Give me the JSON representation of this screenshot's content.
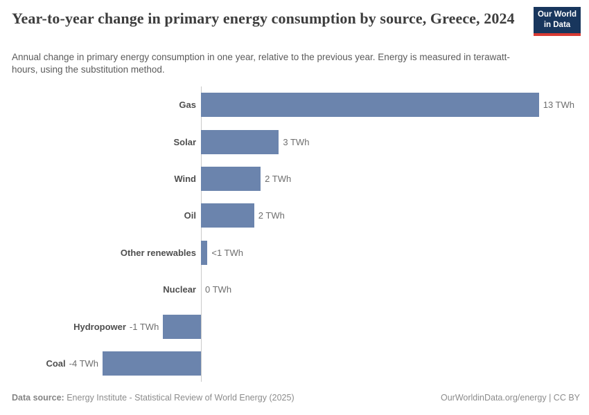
{
  "header": {
    "title": "Year-to-year change in primary energy consumption by source, Greece, 2024",
    "subtitle": "Annual change in primary energy consumption in one year, relative to the previous year. Energy is measured in terawatt-hours, using the substitution method."
  },
  "logo": {
    "line1": "Our World",
    "line2": "in Data",
    "background_color": "#18365d",
    "accent_color": "#d93b33"
  },
  "chart_data": {
    "type": "bar",
    "orientation": "horizontal",
    "title": "Year-to-year change in primary energy consumption by source, Greece, 2024",
    "xlabel": "",
    "ylabel": "",
    "unit": "TWh",
    "grid": false,
    "xlim": [
      -4.5,
      15
    ],
    "categories": [
      "Gas",
      "Solar",
      "Wind",
      "Oil",
      "Other renewables",
      "Nuclear",
      "Hydropower",
      "Coal"
    ],
    "values": [
      13.02,
      3.0,
      2.3,
      2.05,
      0.25,
      0,
      -1.46,
      -3.79
    ],
    "value_labels": [
      "13 TWh",
      "3 TWh",
      "2 TWh",
      "2 TWh",
      "<1 TWh",
      "0 TWh",
      "-1 TWh",
      "-4 TWh"
    ],
    "bar_color": "#6b84ad",
    "axis_color": "#c9c9c9",
    "legend": false
  },
  "footer": {
    "source_label": "Data source:",
    "source_text": "Energy Institute - Statistical Review of World Energy (2025)",
    "credit": "OurWorldinData.org/energy | CC BY"
  }
}
